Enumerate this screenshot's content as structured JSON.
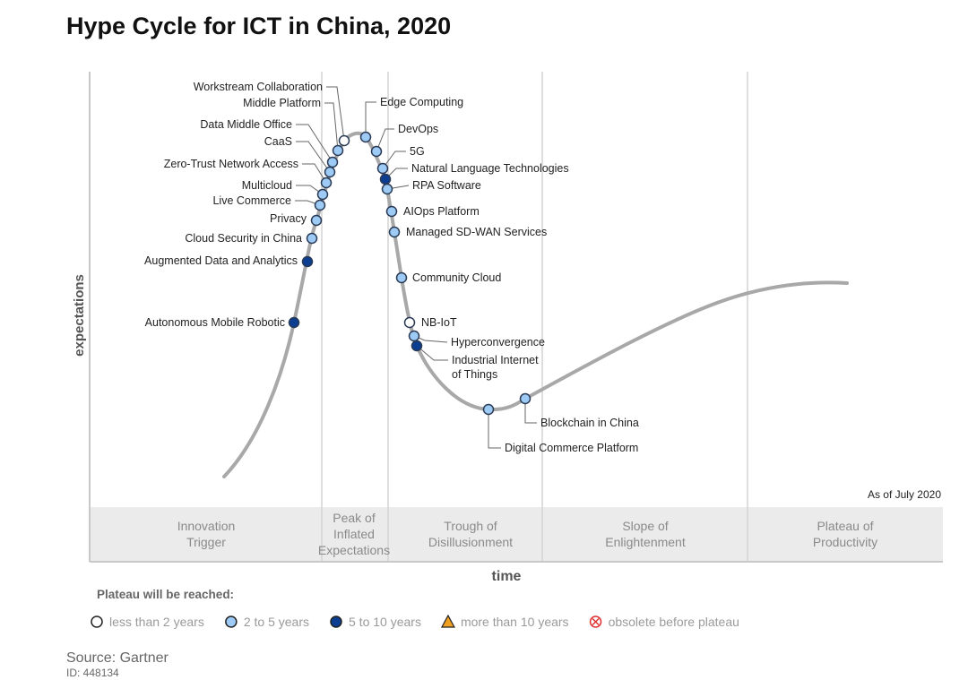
{
  "chart_data": {
    "type": "hype-cycle",
    "title": "Hype Cycle for ICT in China, 2020",
    "xlabel": "time",
    "ylabel": "expectations",
    "as_of": "As of July 2020",
    "phases": [
      "Innovation Trigger",
      "Peak of Inflated Expectations",
      "Trough of Disillusionment",
      "Slope of Enlightenment",
      "Plateau of Productivity"
    ],
    "phase_lines": [
      [
        "Innovation",
        "Trigger"
      ],
      [
        "Peak of",
        "Inflated",
        "Expectations"
      ],
      [
        "Trough of",
        "Disillusionment"
      ],
      [
        "Slope of",
        "Enlightenment"
      ],
      [
        "Plateau of",
        "Productivity"
      ]
    ],
    "legend": {
      "title": "Plateau will be reached:",
      "items": [
        {
          "key": "lt2",
          "label": "less than 2 years",
          "color": "#ffffff",
          "shape": "circle"
        },
        {
          "key": "2to5",
          "label": "2 to 5 years",
          "color": "#9ecbf5",
          "shape": "circle"
        },
        {
          "key": "5to10",
          "label": "5 to 10 years",
          "color": "#0b3d91",
          "shape": "circle"
        },
        {
          "key": "gt10",
          "label": "more than 10 years",
          "color": "#f0a020",
          "shape": "triangle"
        },
        {
          "key": "obs",
          "label": "obsolete before plateau",
          "color": "#e03030",
          "shape": "crossed-circle"
        }
      ]
    },
    "technologies": [
      {
        "name": "Autonomous Mobile Robotic",
        "phase": "Innovation Trigger",
        "plateau": "5to10"
      },
      {
        "name": "Augmented Data and Analytics",
        "phase": "Innovation Trigger",
        "plateau": "5to10"
      },
      {
        "name": "Cloud Security in China",
        "phase": "Innovation Trigger",
        "plateau": "2to5"
      },
      {
        "name": "Privacy",
        "phase": "Innovation Trigger",
        "plateau": "2to5"
      },
      {
        "name": "Live Commerce",
        "phase": "Innovation Trigger",
        "plateau": "2to5"
      },
      {
        "name": "Multicloud",
        "phase": "Peak of Inflated Expectations",
        "plateau": "2to5"
      },
      {
        "name": "Zero-Trust Network Access",
        "phase": "Peak of Inflated Expectations",
        "plateau": "2to5"
      },
      {
        "name": "CaaS",
        "phase": "Peak of Inflated Expectations",
        "plateau": "2to5"
      },
      {
        "name": "Data Middle Office",
        "phase": "Peak of Inflated Expectations",
        "plateau": "2to5"
      },
      {
        "name": "Middle Platform",
        "phase": "Peak of Inflated Expectations",
        "plateau": "2to5"
      },
      {
        "name": "Workstream Collaboration",
        "phase": "Peak of Inflated Expectations",
        "plateau": "lt2"
      },
      {
        "name": "Edge Computing",
        "phase": "Peak of Inflated Expectations",
        "plateau": "2to5"
      },
      {
        "name": "DevOps",
        "phase": "Peak of Inflated Expectations",
        "plateau": "2to5"
      },
      {
        "name": "5G",
        "phase": "Peak of Inflated Expectations",
        "plateau": "2to5"
      },
      {
        "name": "Natural Language Technologies",
        "phase": "Peak of Inflated Expectations",
        "plateau": "5to10"
      },
      {
        "name": "RPA Software",
        "phase": "Peak of Inflated Expectations",
        "plateau": "2to5"
      },
      {
        "name": "AIOps Platform",
        "phase": "Trough of Disillusionment",
        "plateau": "2to5"
      },
      {
        "name": "Managed SD-WAN Services",
        "phase": "Trough of Disillusionment",
        "plateau": "2to5"
      },
      {
        "name": "Community Cloud",
        "phase": "Trough of Disillusionment",
        "plateau": "2to5"
      },
      {
        "name": "NB-IoT",
        "phase": "Trough of Disillusionment",
        "plateau": "lt2"
      },
      {
        "name": "Hyperconvergence",
        "phase": "Trough of Disillusionment",
        "plateau": "2to5"
      },
      {
        "name": "Industrial Internet of Things",
        "phase": "Trough of Disillusionment",
        "plateau": "5to10"
      },
      {
        "name": "Digital Commerce Platform",
        "phase": "Trough of Disillusionment",
        "plateau": "2to5"
      },
      {
        "name": "Blockchain in China",
        "phase": "Trough of Disillusionment",
        "plateau": "2to5"
      }
    ],
    "source": "Source: Gartner",
    "id": "ID: 448134"
  }
}
